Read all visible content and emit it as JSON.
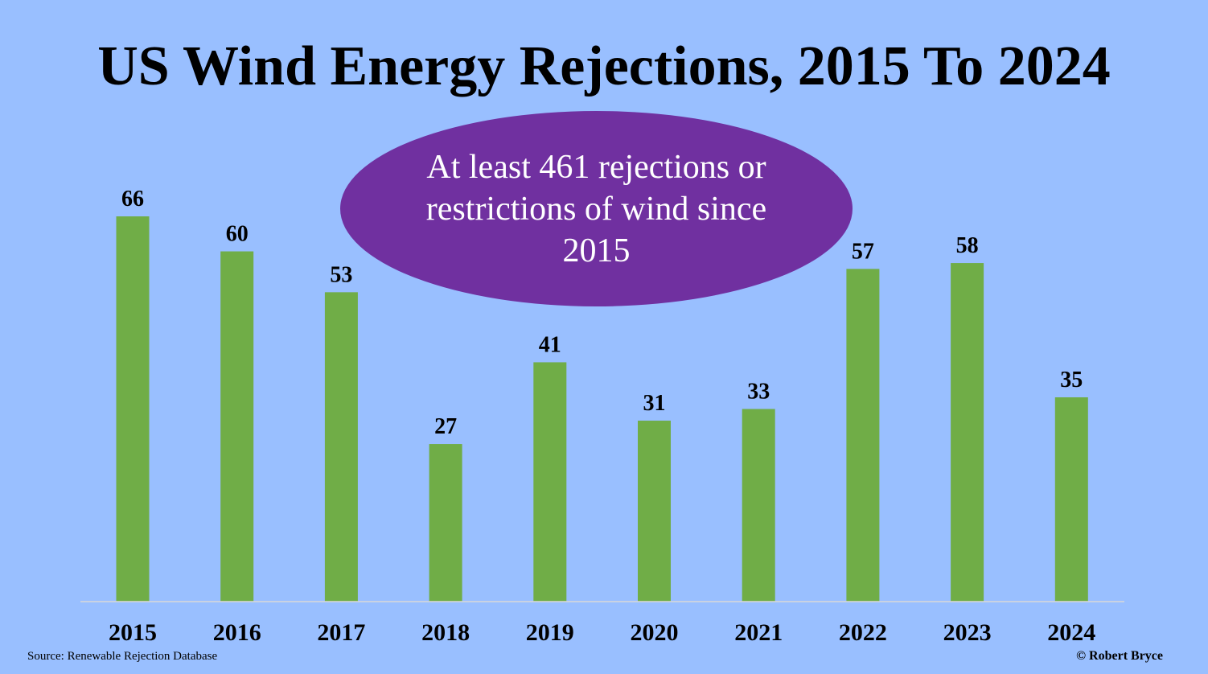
{
  "chart_data": {
    "type": "bar",
    "title": "US Wind Energy Rejections, 2015 To 2024",
    "categories": [
      "2015",
      "2016",
      "2017",
      "2018",
      "2019",
      "2020",
      "2021",
      "2022",
      "2023",
      "2024"
    ],
    "values": [
      66,
      60,
      53,
      27,
      41,
      31,
      33,
      57,
      58,
      35
    ],
    "ylim": [
      0,
      66
    ],
    "grid": false,
    "bar_color": "#70AD47",
    "background_color": "#99BFFF",
    "annotation": "At least 461 rejections or restrictions of wind since 2015",
    "annotation_color": "#7030A0"
  },
  "footer": {
    "source": "Source: Renewable Rejection Database",
    "copyright": "© Robert Bryce"
  }
}
